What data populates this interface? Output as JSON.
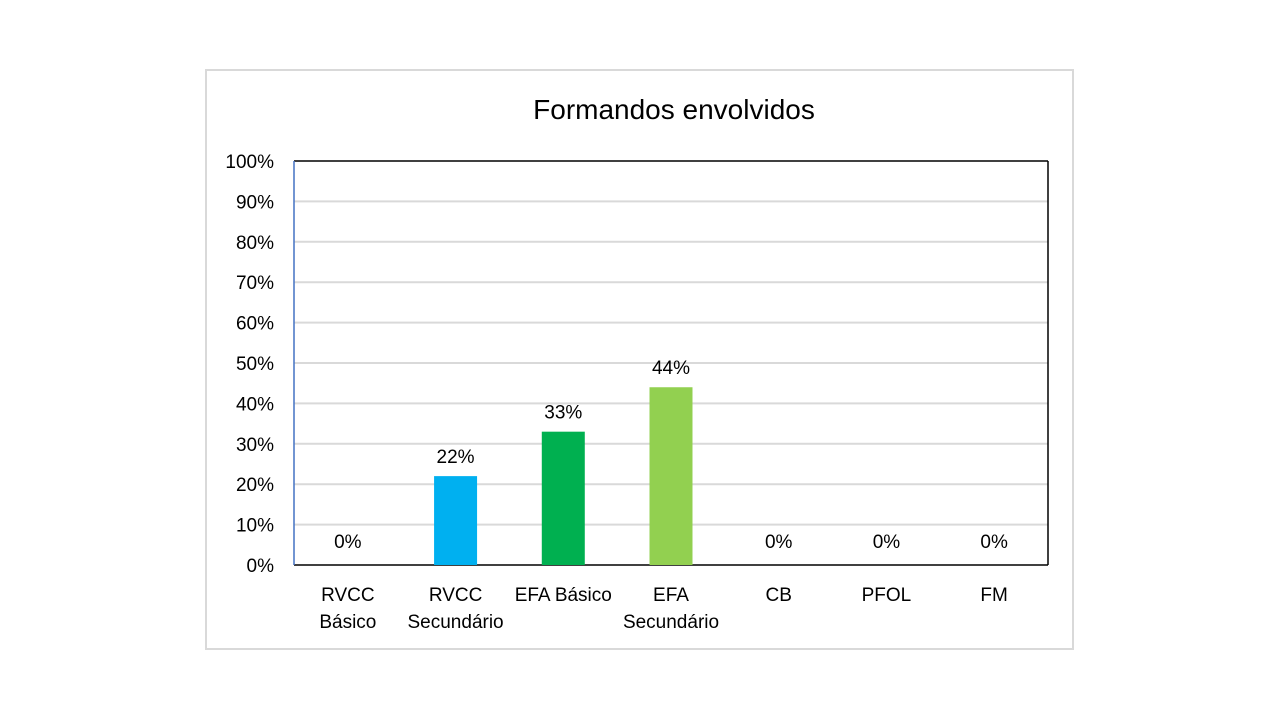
{
  "chart_data": {
    "type": "bar",
    "title": "Formandos envolvidos",
    "xlabel": "",
    "ylabel": "",
    "categories": [
      [
        "RVCC",
        "Básico"
      ],
      [
        "RVCC",
        "Secundário"
      ],
      [
        "EFA Básico"
      ],
      [
        "EFA",
        "Secundário"
      ],
      [
        "CB"
      ],
      [
        "PFOL"
      ],
      [
        "FM"
      ]
    ],
    "values": [
      0,
      22,
      33,
      44,
      0,
      0,
      0
    ],
    "data_labels": [
      "0%",
      "22%",
      "33%",
      "44%",
      "0%",
      "0%",
      "0%"
    ],
    "bar_colors": [
      "#00b0f0",
      "#00b0f0",
      "#00b050",
      "#92d050",
      "#00b0f0",
      "#00b0f0",
      "#00b0f0"
    ],
    "ylim": [
      0,
      100
    ],
    "yticks": [
      0,
      10,
      20,
      30,
      40,
      50,
      60,
      70,
      80,
      90,
      100
    ],
    "ytick_labels": [
      "0%",
      "10%",
      "20%",
      "30%",
      "40%",
      "50%",
      "60%",
      "70%",
      "80%",
      "90%",
      "100%"
    ],
    "grid": true,
    "legend": "none",
    "colors": {
      "gridline": "#d9d9d9",
      "frame": "#d9d9d9",
      "plot_border": "#000000",
      "y_axis": "#4472c4"
    }
  }
}
